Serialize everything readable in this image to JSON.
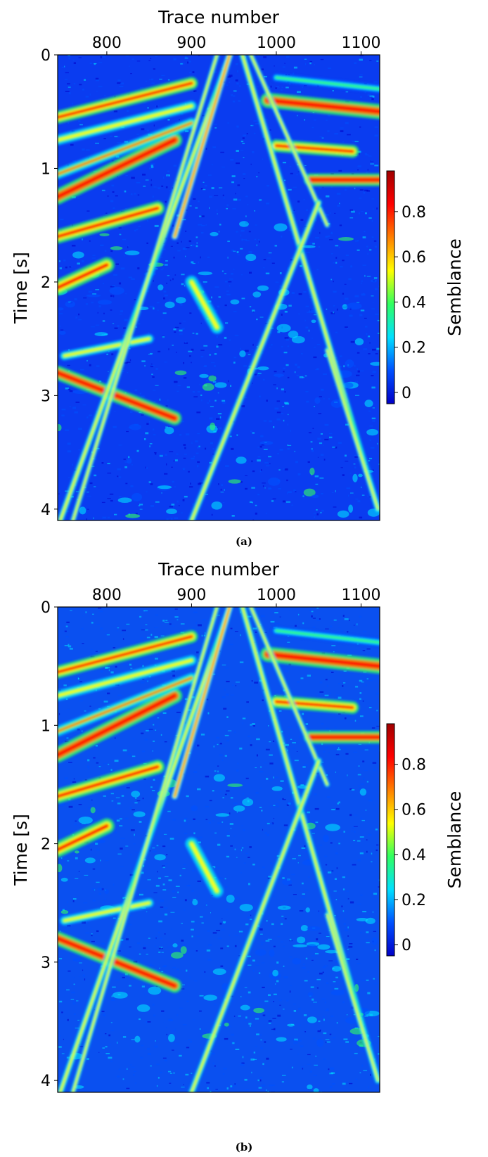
{
  "panels": [
    {
      "caption": "(a)",
      "xlabel": "Trace number",
      "ylabel": "Time [s]",
      "colorbar_label": "Semblance"
    },
    {
      "caption": "(b)",
      "xlabel": "Trace number",
      "ylabel": "Time [s]",
      "colorbar_label": "Semblance"
    }
  ],
  "chart_data": [
    {
      "type": "heatmap",
      "panel": "(a)",
      "xlabel": "Trace number",
      "ylabel": "Time [s]",
      "x_ticks": [
        800,
        900,
        1000,
        1100
      ],
      "y_ticks": [
        0,
        1,
        2,
        3,
        4
      ],
      "xlim": [
        742,
        1122
      ],
      "ylim": [
        4.1,
        0
      ],
      "x_axis_position": "top",
      "colorbar": {
        "label": "Semblance",
        "ticks": [
          0,
          0.2,
          0.4,
          0.6,
          0.8
        ],
        "range": [
          -0.05,
          0.98
        ],
        "colormap": "jet"
      },
      "colormap_colors": [
        "#0000c8",
        "#0050ff",
        "#00e0ff",
        "#30ff60",
        "#ffff00",
        "#ff8000",
        "#ff0000",
        "#a00000"
      ],
      "background_color": "#0a3cf0"
    },
    {
      "type": "heatmap",
      "panel": "(b)",
      "xlabel": "Trace number",
      "ylabel": "Time [s]",
      "x_ticks": [
        800,
        900,
        1000,
        1100
      ],
      "y_ticks": [
        0,
        1,
        2,
        3,
        4
      ],
      "xlim": [
        742,
        1122
      ],
      "ylim": [
        4.1,
        0
      ],
      "x_axis_position": "top",
      "colorbar": {
        "label": "Semblance",
        "ticks": [
          0,
          0.2,
          0.4,
          0.6,
          0.8
        ],
        "range": [
          -0.05,
          0.98
        ],
        "colormap": "jet"
      },
      "colormap_colors": [
        "#0000c8",
        "#0050ff",
        "#00e0ff",
        "#30ff60",
        "#ffff00",
        "#ff8000",
        "#ff0000",
        "#a00000"
      ],
      "background_color": "#0a50f0"
    }
  ]
}
